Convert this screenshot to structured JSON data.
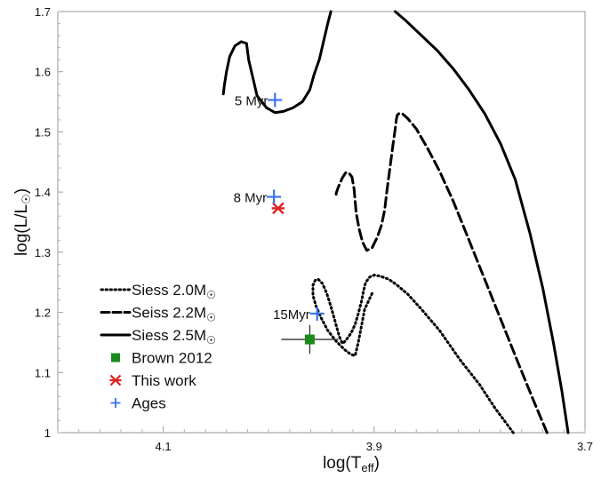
{
  "chart_data": {
    "type": "line",
    "xlabel": "log(T",
    "xlabel_sub": "eff",
    "xlabel_close": ")",
    "ylabel": "log(L/L",
    "ylabel_close": ")",
    "xlim": [
      4.2,
      3.7
    ],
    "ylim": [
      1.0,
      1.7
    ],
    "x_axis_reversed": true,
    "grid": false,
    "legend_position": "bottom-left",
    "xticks": [
      4.1,
      3.9,
      3.7
    ],
    "xtick_labels": [
      "4.1",
      "3.9",
      "3.7"
    ],
    "yticks": [
      1.0,
      1.1,
      1.2,
      1.3,
      1.4,
      1.5,
      1.6,
      1.7
    ],
    "ytick_labels": [
      "1",
      "1.1",
      "1.2",
      "1.3",
      "1.4",
      "1.5",
      "1.6",
      "1.7"
    ],
    "series": [
      {
        "name": "Siess 2.0M",
        "legend_suffix": "☉",
        "style": "dotted",
        "color": "#000000",
        "x": [
          3.768,
          3.785,
          3.8,
          3.818,
          3.838,
          3.855,
          3.868,
          3.878,
          3.886,
          3.894,
          3.9,
          3.904,
          3.908,
          3.91,
          3.912,
          3.915,
          3.918,
          3.922,
          3.927,
          3.93,
          3.933,
          3.937,
          3.941,
          3.945,
          3.949,
          3.953,
          3.956,
          3.958,
          3.958,
          3.955,
          3.95,
          3.944,
          3.936,
          3.928,
          3.922,
          3.918,
          3.915,
          3.909,
          3.901
        ],
        "y": [
          1.0,
          1.04,
          1.08,
          1.12,
          1.17,
          1.205,
          1.23,
          1.245,
          1.255,
          1.26,
          1.262,
          1.259,
          1.25,
          1.236,
          1.218,
          1.198,
          1.18,
          1.165,
          1.153,
          1.148,
          1.16,
          1.185,
          1.21,
          1.232,
          1.248,
          1.255,
          1.253,
          1.245,
          1.228,
          1.21,
          1.19,
          1.17,
          1.152,
          1.138,
          1.13,
          1.128,
          1.15,
          1.205,
          1.235
        ]
      },
      {
        "name": "Seiss 2.2M",
        "legend_suffix": "☉",
        "style": "dashed",
        "color": "#000000",
        "x": [
          3.736,
          3.748,
          3.762,
          3.778,
          3.794,
          3.81,
          3.825,
          3.838,
          3.85,
          3.86,
          3.868,
          3.873,
          3.876,
          3.878,
          3.879,
          3.88,
          3.882,
          3.885,
          3.888,
          3.89,
          3.893,
          3.897,
          3.902,
          3.907,
          3.911,
          3.914,
          3.917,
          3.918,
          3.919,
          3.92,
          3.921,
          3.924,
          3.927,
          3.93,
          3.934,
          3.936,
          3.936
        ],
        "y": [
          1.0,
          1.05,
          1.11,
          1.18,
          1.25,
          1.32,
          1.385,
          1.435,
          1.475,
          1.505,
          1.522,
          1.53,
          1.531,
          1.528,
          1.52,
          1.505,
          1.48,
          1.44,
          1.4,
          1.37,
          1.345,
          1.325,
          1.307,
          1.303,
          1.317,
          1.337,
          1.365,
          1.385,
          1.405,
          1.415,
          1.425,
          1.432,
          1.432,
          1.424,
          1.408,
          1.398,
          1.39
        ]
      },
      {
        "name": "Siess 2.5M",
        "legend_suffix": "☉",
        "style": "solid",
        "color": "#000000",
        "x": [
          3.716,
          3.722,
          3.73,
          3.74,
          3.752,
          3.766,
          3.78,
          3.795,
          3.81,
          3.825,
          3.84,
          3.855,
          3.87,
          3.88
        ],
        "y": [
          1.0,
          1.07,
          1.15,
          1.24,
          1.33,
          1.42,
          1.48,
          1.53,
          1.57,
          1.605,
          1.635,
          1.66,
          1.685,
          1.7
        ]
      },
      {
        "name": "",
        "style": "solid",
        "color": "#000000",
        "x": [
          3.941,
          3.944,
          3.948,
          3.952,
          3.957,
          3.961,
          3.968,
          3.977,
          3.986,
          3.994,
          4.002,
          4.011,
          4.019,
          4.021
        ],
        "y": [
          1.7,
          1.68,
          1.65,
          1.62,
          1.595,
          1.57,
          1.55,
          1.54,
          1.534,
          1.532,
          1.54,
          1.56,
          1.62,
          1.647
        ]
      },
      {
        "name": "",
        "style": "solid",
        "color": "#000000",
        "x": [
          4.021,
          4.026,
          4.032,
          4.037,
          4.04,
          4.042,
          4.043
        ],
        "y": [
          1.647,
          1.65,
          1.643,
          1.625,
          1.6,
          1.578,
          1.563
        ]
      }
    ],
    "points": [
      {
        "name": "Brown 2012",
        "marker": "square",
        "color": "#1a8a1a",
        "x": 3.961,
        "y": 1.155,
        "xerr": 0.027,
        "yerr": 0.024
      },
      {
        "name": "This work",
        "marker": "asterisk",
        "color": "#e02020",
        "x": 3.991,
        "y": 1.373
      },
      {
        "name": "Ages",
        "marker": "plus",
        "color": "#3a72e8",
        "ages": [
          {
            "x": 3.994,
            "y": 1.553,
            "label": "5 Myr"
          },
          {
            "x": 3.995,
            "y": 1.392,
            "label": "8 Myr"
          },
          {
            "x": 3.954,
            "y": 1.198,
            "label": "15Myr"
          }
        ]
      }
    ],
    "legend": [
      {
        "label": "Siess 2.0M",
        "suffix": "☉",
        "kind": "dotted"
      },
      {
        "label": "Seiss 2.2M",
        "suffix": "☉",
        "kind": "dashed"
      },
      {
        "label": "Siess 2.5M",
        "suffix": "☉",
        "kind": "solid"
      },
      {
        "label": "Brown 2012",
        "suffix": "",
        "kind": "square"
      },
      {
        "label": "This work",
        "suffix": "",
        "kind": "asterisk"
      },
      {
        "label": "Ages",
        "suffix": "",
        "kind": "plus"
      }
    ]
  },
  "colors": {
    "brown": "#1a8a1a",
    "this_work": "#e02020",
    "ages": "#3a72e8"
  }
}
